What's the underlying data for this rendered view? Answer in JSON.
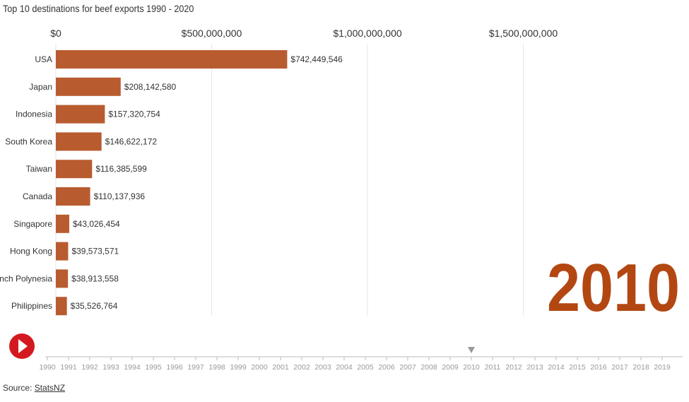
{
  "subtitle": "Top 10 destinations for beef exports 1990 - 2020",
  "source": {
    "prefix": "Source: ",
    "link_text": "StatsNZ"
  },
  "colors": {
    "bar": "#b85c30",
    "big_year": "#b34712",
    "play": "#d3191f",
    "grid": "#e6e6e6"
  },
  "current_year": "2010",
  "timeline_years": [
    "1990",
    "1991",
    "1992",
    "1993",
    "1994",
    "1995",
    "1996",
    "1997",
    "1998",
    "1999",
    "2000",
    "2001",
    "2002",
    "2003",
    "2004",
    "2005",
    "2006",
    "2007",
    "2008",
    "2009",
    "2010",
    "2011",
    "2012",
    "2013",
    "2014",
    "2015",
    "2016",
    "2017",
    "2018",
    "2019"
  ],
  "play_icon": "play-icon",
  "chart_data": {
    "type": "bar",
    "orientation": "horizontal",
    "title": "Top 10 destinations for beef exports 1990 - 2020",
    "categories": [
      "USA",
      "Japan",
      "Indonesia",
      "South Korea",
      "Taiwan",
      "Canada",
      "Singapore",
      "Hong Kong",
      "French Polynesia",
      "Philippines"
    ],
    "values": [
      742449546,
      208142580,
      157320754,
      146622172,
      116385599,
      110137936,
      43026454,
      39573571,
      38913558,
      35526764
    ],
    "value_labels": [
      "$742,449,546",
      "$208,142,580",
      "$157,320,754",
      "$146,622,172",
      "$116,385,599",
      "$110,137,936",
      "$43,026,454",
      "$39,573,571",
      "$38,913,558",
      "$35,526,764"
    ],
    "xlim": [
      0,
      2000000000
    ],
    "ticks": [
      0,
      500000000,
      1000000000,
      1500000000
    ],
    "tick_labels": [
      "$0",
      "$500,000,000",
      "$1,000,000,000",
      "$1,500,000,000"
    ],
    "legend": "none"
  }
}
